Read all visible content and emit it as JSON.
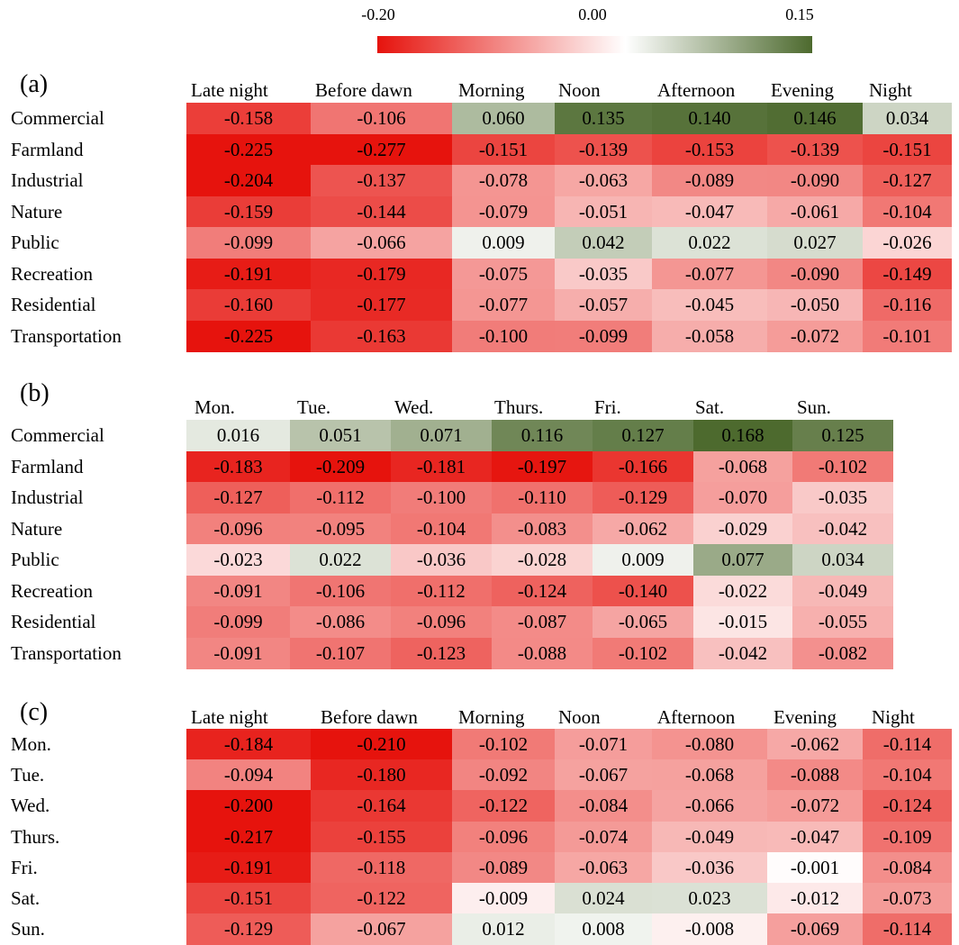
{
  "colorbar": {
    "ticks": [
      "-0.20",
      "0.00",
      "0.15"
    ],
    "min": -0.2,
    "mid": 0.0,
    "max": 0.15,
    "colors": {
      "negative": "#e6130d",
      "neutral": "#ffffff",
      "positive": "#4d6a2e"
    }
  },
  "chart_data": [
    {
      "type": "heatmap",
      "panel_label": "(a)",
      "columns": [
        "Late night",
        "Before dawn",
        "Morning",
        "Noon",
        "Afternoon",
        "Evening",
        "Night"
      ],
      "rows": [
        "Commercial",
        "Farmland",
        "Industrial",
        "Nature",
        "Public",
        "Recreation",
        "Residential",
        "Transportation"
      ],
      "values": [
        [
          "-0.158",
          "-0.106",
          "0.060",
          "0.135",
          "0.140",
          "0.146",
          "0.034"
        ],
        [
          "-0.225",
          "-0.277",
          "-0.151",
          "-0.139",
          "-0.153",
          "-0.139",
          "-0.151"
        ],
        [
          "-0.204",
          "-0.137",
          "-0.078",
          "-0.063",
          "-0.089",
          "-0.090",
          "-0.127"
        ],
        [
          "-0.159",
          "-0.144",
          "-0.079",
          "-0.051",
          "-0.047",
          "-0.061",
          "-0.104"
        ],
        [
          "-0.099",
          "-0.066",
          "0.009",
          "0.042",
          "0.022",
          "0.027",
          "-0.026"
        ],
        [
          "-0.191",
          "-0.179",
          "-0.075",
          "-0.035",
          "-0.077",
          "-0.090",
          "-0.149"
        ],
        [
          "-0.160",
          "-0.177",
          "-0.077",
          "-0.057",
          "-0.045",
          "-0.050",
          "-0.116"
        ],
        [
          "-0.225",
          "-0.163",
          "-0.100",
          "-0.099",
          "-0.058",
          "-0.072",
          "-0.101"
        ]
      ]
    },
    {
      "type": "heatmap",
      "panel_label": "(b)",
      "columns": [
        "Mon.",
        "Tue.",
        "Wed.",
        "Thurs.",
        "Fri.",
        "Sat.",
        "Sun."
      ],
      "rows": [
        "Commercial",
        "Farmland",
        "Industrial",
        "Nature",
        "Public",
        "Recreation",
        "Residential",
        "Transportation"
      ],
      "values": [
        [
          "0.016",
          "0.051",
          "0.071",
          "0.116",
          "0.127",
          "0.168",
          "0.125"
        ],
        [
          "-0.183",
          "-0.209",
          "-0.181",
          "-0.197",
          "-0.166",
          "-0.068",
          "-0.102"
        ],
        [
          "-0.127",
          "-0.112",
          "-0.100",
          "-0.110",
          "-0.129",
          "-0.070",
          "-0.035"
        ],
        [
          "-0.096",
          "-0.095",
          "-0.104",
          "-0.083",
          "-0.062",
          "-0.029",
          "-0.042"
        ],
        [
          "-0.023",
          "0.022",
          "-0.036",
          "-0.028",
          "0.009",
          "0.077",
          "0.034"
        ],
        [
          "-0.091",
          "-0.106",
          "-0.112",
          "-0.124",
          "-0.140",
          "-0.022",
          "-0.049"
        ],
        [
          "-0.099",
          "-0.086",
          "-0.096",
          "-0.087",
          "-0.065",
          "-0.015",
          "-0.055"
        ],
        [
          "-0.091",
          "-0.107",
          "-0.123",
          "-0.088",
          "-0.102",
          "-0.042",
          "-0.082"
        ]
      ]
    },
    {
      "type": "heatmap",
      "panel_label": "(c)",
      "columns": [
        "Late night",
        "Before dawn",
        "Morning",
        "Noon",
        "Afternoon",
        "Evening",
        "Night"
      ],
      "rows": [
        "Mon.",
        "Tue.",
        "Wed.",
        "Thurs.",
        "Fri.",
        "Sat.",
        "Sun."
      ],
      "values": [
        [
          "-0.184",
          "-0.210",
          "-0.102",
          "-0.071",
          "-0.080",
          "-0.062",
          "-0.114"
        ],
        [
          "-0.094",
          "-0.180",
          "-0.092",
          "-0.067",
          "-0.068",
          "-0.088",
          "-0.104"
        ],
        [
          "-0.200",
          "-0.164",
          "-0.122",
          "-0.084",
          "-0.066",
          "-0.072",
          "-0.124"
        ],
        [
          "-0.217",
          "-0.155",
          "-0.096",
          "-0.074",
          "-0.049",
          "-0.047",
          "-0.109"
        ],
        [
          "-0.191",
          "-0.118",
          "-0.089",
          "-0.063",
          "-0.036",
          "-0.001",
          "-0.084"
        ],
        [
          "-0.151",
          "-0.122",
          "-0.009",
          "0.024",
          "0.023",
          "-0.012",
          "-0.073"
        ],
        [
          "-0.129",
          "-0.067",
          "0.012",
          "0.008",
          "-0.008",
          "-0.069",
          "-0.114"
        ]
      ]
    }
  ]
}
